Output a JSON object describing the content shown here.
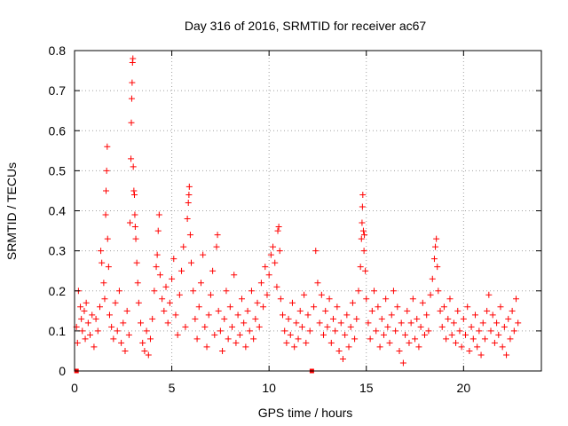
{
  "chart_data": {
    "type": "scatter",
    "title": "Day 316 of 2016, SRMTID for receiver ac67",
    "xlabel": "GPS time / hours",
    "ylabel": "SRMTID / TECUs",
    "xlim": [
      0,
      24
    ],
    "ylim": [
      0,
      0.8
    ],
    "xticks": [
      0,
      5,
      10,
      15,
      20
    ],
    "yticks": [
      0,
      0.1,
      0.2,
      0.3,
      0.4,
      0.5,
      0.6,
      0.7,
      0.8
    ],
    "xtick_labels": [
      "0",
      "5",
      "10",
      "15",
      "20"
    ],
    "ytick_labels": [
      "0",
      "0.1",
      "0.2",
      "0.3",
      "0.4",
      "0.5",
      "0.6",
      "0.7",
      "0.8"
    ],
    "grid": true,
    "series_color": "#ff0000",
    "marker": "+",
    "data_gaps_markers": [
      {
        "x": 0.1,
        "y": 0.0
      },
      {
        "x": 12.2,
        "y": 0.0
      }
    ],
    "series": [
      {
        "name": "SRMTID",
        "points": [
          [
            0.1,
            0.11
          ],
          [
            0.15,
            0.07
          ],
          [
            0.2,
            0.2
          ],
          [
            0.3,
            0.16
          ],
          [
            0.35,
            0.13
          ],
          [
            0.4,
            0.1
          ],
          [
            0.5,
            0.15
          ],
          [
            0.55,
            0.08
          ],
          [
            0.6,
            0.17
          ],
          [
            0.7,
            0.12
          ],
          [
            0.8,
            0.09
          ],
          [
            0.9,
            0.14
          ],
          [
            1.0,
            0.06
          ],
          [
            1.1,
            0.13
          ],
          [
            1.2,
            0.1
          ],
          [
            1.3,
            0.16
          ],
          [
            1.35,
            0.3
          ],
          [
            1.4,
            0.27
          ],
          [
            1.5,
            0.22
          ],
          [
            1.55,
            0.18
          ],
          [
            1.6,
            0.39
          ],
          [
            1.62,
            0.45
          ],
          [
            1.65,
            0.5
          ],
          [
            1.68,
            0.56
          ],
          [
            1.7,
            0.33
          ],
          [
            1.75,
            0.26
          ],
          [
            1.8,
            0.14
          ],
          [
            1.9,
            0.11
          ],
          [
            2.0,
            0.08
          ],
          [
            2.1,
            0.17
          ],
          [
            2.2,
            0.1
          ],
          [
            2.3,
            0.2
          ],
          [
            2.4,
            0.07
          ],
          [
            2.5,
            0.12
          ],
          [
            2.6,
            0.05
          ],
          [
            2.7,
            0.15
          ],
          [
            2.8,
            0.09
          ],
          [
            2.85,
            0.37
          ],
          [
            2.9,
            0.53
          ],
          [
            2.92,
            0.62
          ],
          [
            2.94,
            0.68
          ],
          [
            2.96,
            0.72
          ],
          [
            2.98,
            0.77
          ],
          [
            3.0,
            0.78
          ],
          [
            3.02,
            0.51
          ],
          [
            3.05,
            0.45
          ],
          [
            3.08,
            0.44
          ],
          [
            3.1,
            0.39
          ],
          [
            3.12,
            0.36
          ],
          [
            3.15,
            0.33
          ],
          [
            3.2,
            0.27
          ],
          [
            3.25,
            0.22
          ],
          [
            3.3,
            0.17
          ],
          [
            3.4,
            0.12
          ],
          [
            3.5,
            0.07
          ],
          [
            3.6,
            0.05
          ],
          [
            3.7,
            0.1
          ],
          [
            3.8,
            0.04
          ],
          [
            3.9,
            0.08
          ],
          [
            4.0,
            0.13
          ],
          [
            4.1,
            0.2
          ],
          [
            4.2,
            0.26
          ],
          [
            4.25,
            0.29
          ],
          [
            4.3,
            0.35
          ],
          [
            4.35,
            0.39
          ],
          [
            4.4,
            0.24
          ],
          [
            4.5,
            0.18
          ],
          [
            4.6,
            0.15
          ],
          [
            4.7,
            0.21
          ],
          [
            4.8,
            0.12
          ],
          [
            4.9,
            0.17
          ],
          [
            5.0,
            0.23
          ],
          [
            5.1,
            0.28
          ],
          [
            5.2,
            0.14
          ],
          [
            5.3,
            0.09
          ],
          [
            5.4,
            0.19
          ],
          [
            5.5,
            0.25
          ],
          [
            5.6,
            0.31
          ],
          [
            5.7,
            0.11
          ],
          [
            5.8,
            0.38
          ],
          [
            5.85,
            0.42
          ],
          [
            5.88,
            0.44
          ],
          [
            5.9,
            0.46
          ],
          [
            5.95,
            0.34
          ],
          [
            6.0,
            0.27
          ],
          [
            6.1,
            0.2
          ],
          [
            6.2,
            0.13
          ],
          [
            6.3,
            0.08
          ],
          [
            6.4,
            0.16
          ],
          [
            6.5,
            0.22
          ],
          [
            6.6,
            0.29
          ],
          [
            6.7,
            0.11
          ],
          [
            6.8,
            0.06
          ],
          [
            6.9,
            0.14
          ],
          [
            7.0,
            0.19
          ],
          [
            7.1,
            0.25
          ],
          [
            7.2,
            0.09
          ],
          [
            7.3,
            0.31
          ],
          [
            7.35,
            0.34
          ],
          [
            7.4,
            0.15
          ],
          [
            7.5,
            0.1
          ],
          [
            7.6,
            0.05
          ],
          [
            7.7,
            0.13
          ],
          [
            7.8,
            0.2
          ],
          [
            7.9,
            0.08
          ],
          [
            8.0,
            0.16
          ],
          [
            8.1,
            0.11
          ],
          [
            8.2,
            0.24
          ],
          [
            8.3,
            0.07
          ],
          [
            8.4,
            0.14
          ],
          [
            8.5,
            0.09
          ],
          [
            8.6,
            0.18
          ],
          [
            8.7,
            0.12
          ],
          [
            8.8,
            0.06
          ],
          [
            8.9,
            0.15
          ],
          [
            9.0,
            0.1
          ],
          [
            9.1,
            0.2
          ],
          [
            9.2,
            0.08
          ],
          [
            9.3,
            0.13
          ],
          [
            9.4,
            0.17
          ],
          [
            9.5,
            0.11
          ],
          [
            9.6,
            0.22
          ],
          [
            9.7,
            0.16
          ],
          [
            9.8,
            0.26
          ],
          [
            9.9,
            0.19
          ],
          [
            10.0,
            0.24
          ],
          [
            10.1,
            0.29
          ],
          [
            10.2,
            0.31
          ],
          [
            10.3,
            0.27
          ],
          [
            10.4,
            0.21
          ],
          [
            10.45,
            0.35
          ],
          [
            10.5,
            0.36
          ],
          [
            10.55,
            0.3
          ],
          [
            10.6,
            0.18
          ],
          [
            10.7,
            0.14
          ],
          [
            10.8,
            0.1
          ],
          [
            10.9,
            0.07
          ],
          [
            11.0,
            0.13
          ],
          [
            11.1,
            0.09
          ],
          [
            11.2,
            0.17
          ],
          [
            11.3,
            0.06
          ],
          [
            11.4,
            0.12
          ],
          [
            11.5,
            0.08
          ],
          [
            11.6,
            0.15
          ],
          [
            11.7,
            0.11
          ],
          [
            11.8,
            0.19
          ],
          [
            11.9,
            0.07
          ],
          [
            12.0,
            0.14
          ],
          [
            12.1,
            0.1
          ],
          [
            12.3,
            0.16
          ],
          [
            12.4,
            0.3
          ],
          [
            12.5,
            0.22
          ],
          [
            12.6,
            0.12
          ],
          [
            12.7,
            0.19
          ],
          [
            12.8,
            0.09
          ],
          [
            12.9,
            0.15
          ],
          [
            13.0,
            0.11
          ],
          [
            13.1,
            0.18
          ],
          [
            13.2,
            0.07
          ],
          [
            13.3,
            0.13
          ],
          [
            13.4,
            0.1
          ],
          [
            13.5,
            0.16
          ],
          [
            13.6,
            0.05
          ],
          [
            13.7,
            0.12
          ],
          [
            13.8,
            0.03
          ],
          [
            13.9,
            0.09
          ],
          [
            14.0,
            0.14
          ],
          [
            14.1,
            0.06
          ],
          [
            14.2,
            0.11
          ],
          [
            14.3,
            0.17
          ],
          [
            14.4,
            0.08
          ],
          [
            14.5,
            0.13
          ],
          [
            14.6,
            0.2
          ],
          [
            14.7,
            0.26
          ],
          [
            14.75,
            0.33
          ],
          [
            14.78,
            0.37
          ],
          [
            14.8,
            0.41
          ],
          [
            14.82,
            0.44
          ],
          [
            14.85,
            0.35
          ],
          [
            14.88,
            0.3
          ],
          [
            14.9,
            0.34
          ],
          [
            14.95,
            0.25
          ],
          [
            15.0,
            0.18
          ],
          [
            15.1,
            0.12
          ],
          [
            15.2,
            0.08
          ],
          [
            15.3,
            0.15
          ],
          [
            15.4,
            0.2
          ],
          [
            15.5,
            0.1
          ],
          [
            15.6,
            0.16
          ],
          [
            15.7,
            0.06
          ],
          [
            15.8,
            0.13
          ],
          [
            15.9,
            0.09
          ],
          [
            16.0,
            0.18
          ],
          [
            16.1,
            0.11
          ],
          [
            16.2,
            0.07
          ],
          [
            16.3,
            0.14
          ],
          [
            16.4,
            0.2
          ],
          [
            16.5,
            0.1
          ],
          [
            16.6,
            0.16
          ],
          [
            16.7,
            0.05
          ],
          [
            16.8,
            0.12
          ],
          [
            16.9,
            0.02
          ],
          [
            17.0,
            0.09
          ],
          [
            17.1,
            0.15
          ],
          [
            17.2,
            0.07
          ],
          [
            17.3,
            0.12
          ],
          [
            17.4,
            0.18
          ],
          [
            17.5,
            0.08
          ],
          [
            17.6,
            0.13
          ],
          [
            17.7,
            0.06
          ],
          [
            17.8,
            0.11
          ],
          [
            17.9,
            0.17
          ],
          [
            18.0,
            0.09
          ],
          [
            18.1,
            0.14
          ],
          [
            18.2,
            0.1
          ],
          [
            18.3,
            0.19
          ],
          [
            18.4,
            0.23
          ],
          [
            18.5,
            0.28
          ],
          [
            18.55,
            0.31
          ],
          [
            18.6,
            0.33
          ],
          [
            18.65,
            0.26
          ],
          [
            18.7,
            0.2
          ],
          [
            18.8,
            0.15
          ],
          [
            18.9,
            0.11
          ],
          [
            19.0,
            0.16
          ],
          [
            19.1,
            0.08
          ],
          [
            19.2,
            0.13
          ],
          [
            19.3,
            0.18
          ],
          [
            19.4,
            0.09
          ],
          [
            19.5,
            0.12
          ],
          [
            19.6,
            0.07
          ],
          [
            19.7,
            0.15
          ],
          [
            19.8,
            0.1
          ],
          [
            19.9,
            0.06
          ],
          [
            20.0,
            0.13
          ],
          [
            20.1,
            0.09
          ],
          [
            20.2,
            0.16
          ],
          [
            20.3,
            0.05
          ],
          [
            20.4,
            0.11
          ],
          [
            20.5,
            0.08
          ],
          [
            20.6,
            0.14
          ],
          [
            20.7,
            0.06
          ],
          [
            20.8,
            0.1
          ],
          [
            20.9,
            0.04
          ],
          [
            21.0,
            0.12
          ],
          [
            21.1,
            0.08
          ],
          [
            21.2,
            0.15
          ],
          [
            21.3,
            0.19
          ],
          [
            21.4,
            0.1
          ],
          [
            21.5,
            0.14
          ],
          [
            21.6,
            0.07
          ],
          [
            21.7,
            0.12
          ],
          [
            21.8,
            0.09
          ],
          [
            21.9,
            0.16
          ],
          [
            22.0,
            0.06
          ],
          [
            22.1,
            0.11
          ],
          [
            22.2,
            0.04
          ],
          [
            22.3,
            0.13
          ],
          [
            22.4,
            0.08
          ],
          [
            22.5,
            0.15
          ],
          [
            22.6,
            0.1
          ],
          [
            22.7,
            0.18
          ],
          [
            22.8,
            0.12
          ]
        ]
      }
    ]
  }
}
